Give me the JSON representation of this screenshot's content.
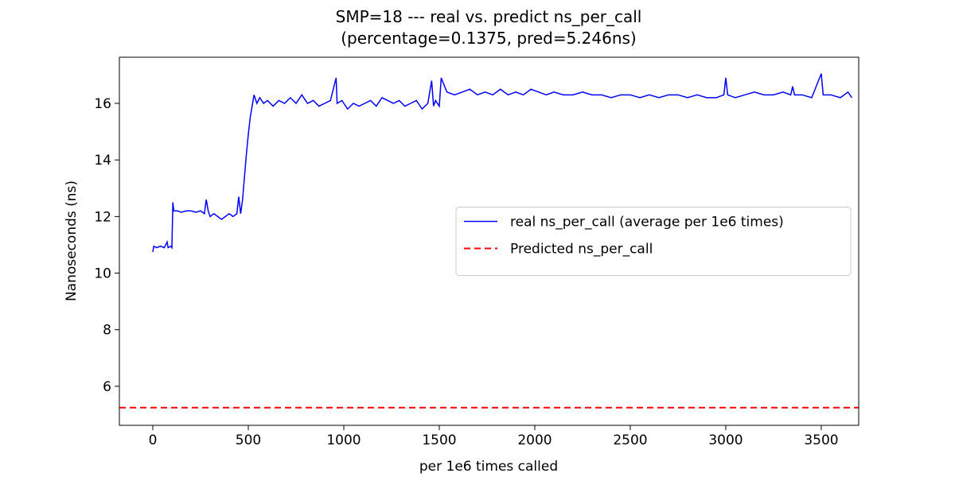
{
  "chart_data": {
    "type": "line",
    "title": "SMP=18 --- real vs. predict ns_per_call",
    "subtitle": "(percentage=0.1375, pred=5.246ns)",
    "x_label": "per 1e6 times called",
    "y_label": "Nanoseconds (ns)",
    "xlim": [
      -175,
      3696
    ],
    "ylim": [
      4.62,
      17.63
    ],
    "xticks": [
      0,
      500,
      1000,
      1500,
      2000,
      2500,
      3000,
      3500
    ],
    "yticks": [
      6,
      8,
      10,
      12,
      14,
      16
    ],
    "legend": "center right",
    "series": [
      {
        "name": "real ns_per_call (average per 1e6 times)",
        "color": "#0000ff",
        "style": "solid",
        "x": [
          0,
          5,
          20,
          40,
          60,
          75,
          80,
          95,
          100,
          105,
          110,
          130,
          150,
          175,
          200,
          225,
          250,
          270,
          280,
          290,
          300,
          320,
          340,
          360,
          380,
          400,
          420,
          440,
          450,
          460,
          470,
          480,
          490,
          500,
          510,
          520,
          530,
          545,
          560,
          580,
          600,
          630,
          660,
          690,
          720,
          750,
          780,
          810,
          840,
          870,
          900,
          930,
          960,
          965,
          990,
          1020,
          1050,
          1080,
          1110,
          1140,
          1170,
          1200,
          1230,
          1260,
          1290,
          1320,
          1350,
          1380,
          1410,
          1440,
          1460,
          1470,
          1480,
          1500,
          1510,
          1540,
          1580,
          1620,
          1660,
          1700,
          1740,
          1780,
          1820,
          1860,
          1900,
          1940,
          1980,
          2020,
          2060,
          2100,
          2150,
          2200,
          2250,
          2300,
          2350,
          2400,
          2450,
          2500,
          2550,
          2600,
          2650,
          2700,
          2750,
          2800,
          2850,
          2900,
          2950,
          2990,
          3000,
          3010,
          3050,
          3100,
          3150,
          3200,
          3250,
          3300,
          3340,
          3350,
          3360,
          3400,
          3450,
          3500,
          3510,
          3550,
          3600,
          3640,
          3660
        ],
        "values": [
          10.75,
          10.95,
          10.9,
          10.95,
          10.9,
          11.1,
          10.9,
          10.95,
          10.9,
          12.5,
          12.2,
          12.2,
          12.15,
          12.2,
          12.2,
          12.15,
          12.2,
          12.1,
          12.6,
          12.2,
          12.0,
          12.1,
          12.0,
          11.9,
          12.0,
          12.1,
          12.0,
          12.1,
          12.7,
          12.1,
          12.6,
          13.4,
          14.2,
          14.9,
          15.5,
          15.9,
          16.3,
          16.0,
          16.2,
          16.0,
          16.1,
          15.9,
          16.1,
          16.0,
          16.2,
          16.0,
          16.3,
          16.0,
          16.1,
          15.9,
          16.0,
          16.1,
          16.9,
          16.0,
          16.1,
          15.8,
          16.0,
          15.9,
          16.0,
          16.1,
          15.9,
          16.2,
          16.1,
          16.0,
          16.1,
          15.9,
          16.0,
          16.1,
          15.8,
          16.0,
          16.8,
          15.9,
          16.1,
          15.9,
          16.9,
          16.4,
          16.3,
          16.4,
          16.5,
          16.3,
          16.4,
          16.3,
          16.5,
          16.3,
          16.4,
          16.3,
          16.5,
          16.4,
          16.3,
          16.4,
          16.3,
          16.3,
          16.4,
          16.3,
          16.3,
          16.2,
          16.3,
          16.3,
          16.2,
          16.3,
          16.2,
          16.3,
          16.3,
          16.2,
          16.3,
          16.2,
          16.2,
          16.3,
          16.9,
          16.3,
          16.2,
          16.3,
          16.4,
          16.3,
          16.3,
          16.4,
          16.3,
          16.6,
          16.3,
          16.3,
          16.2,
          17.05,
          16.3,
          16.3,
          16.2,
          16.4,
          16.2
        ]
      },
      {
        "name": "Predicted ns_per_call",
        "color": "#ff0000",
        "style": "dashed",
        "y": 5.246
      }
    ]
  }
}
